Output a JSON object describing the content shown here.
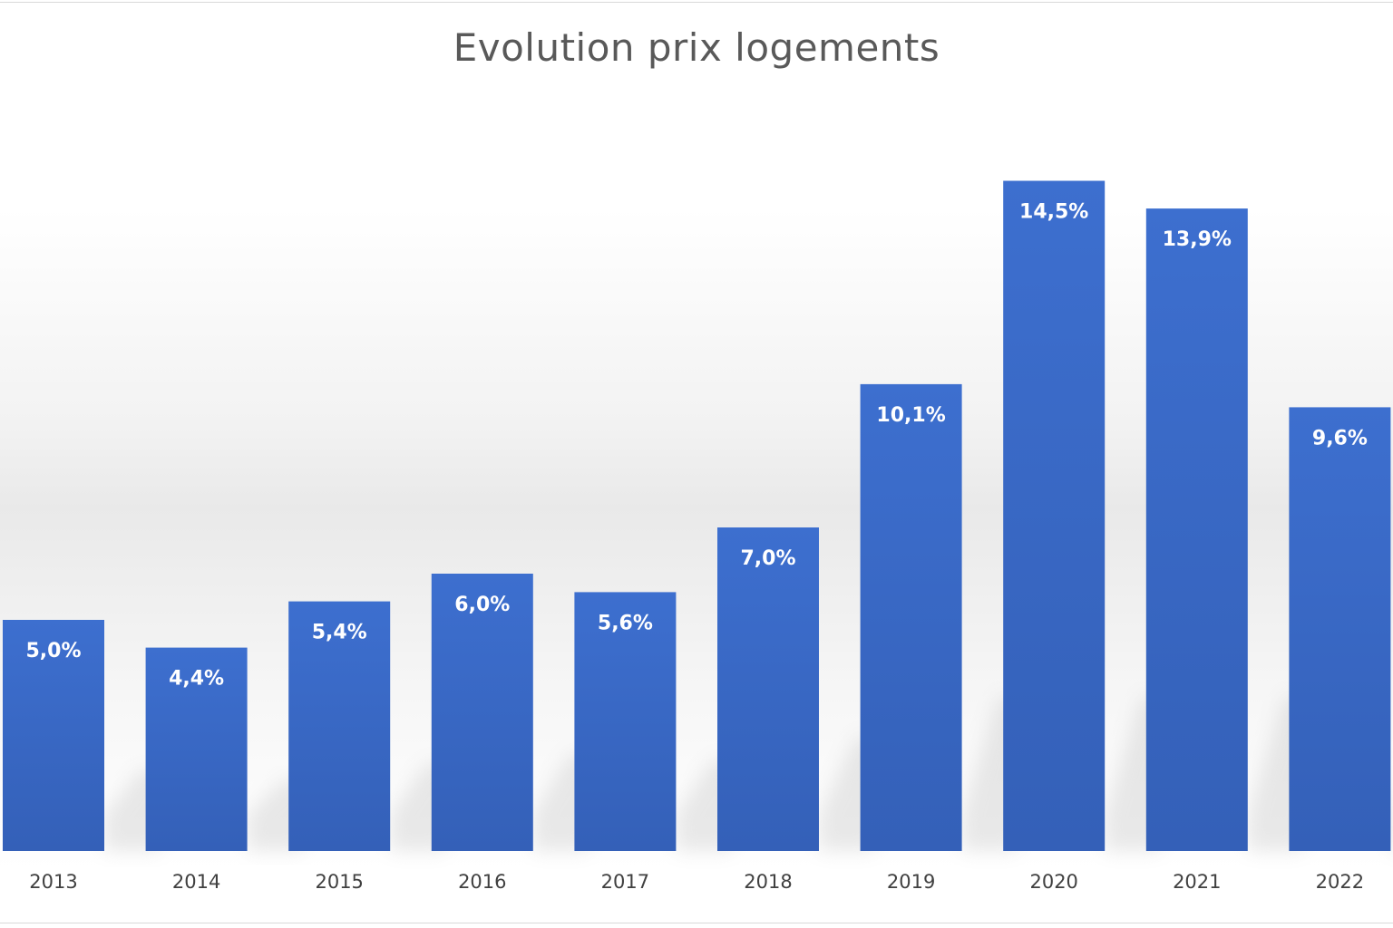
{
  "chart_data": {
    "type": "bar",
    "title": "Evolution prix logements",
    "xlabel": "",
    "ylabel": "",
    "categories": [
      "2013",
      "2014",
      "2015",
      "2016",
      "2017",
      "2018",
      "2019",
      "2020",
      "2021",
      "2022"
    ],
    "values": [
      5.0,
      4.4,
      5.4,
      6.0,
      5.6,
      7.0,
      10.1,
      14.5,
      13.9,
      9.6
    ],
    "data_labels": [
      "5,0%",
      "4,4%",
      "5,4%",
      "6,0%",
      "5,6%",
      "7,0%",
      "10,1%",
      "14,5%",
      "13,9%",
      "9,6%"
    ],
    "ylim": [
      0,
      16
    ],
    "grid": false,
    "legend": "none",
    "bar_color": "#3a6bc9",
    "bar_color_dark": "#3460b8"
  }
}
